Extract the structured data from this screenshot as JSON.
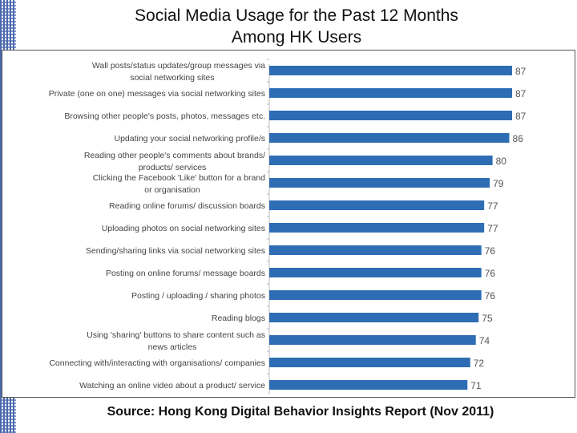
{
  "slide": {
    "title_line1": "Social Media Usage for the Past 12 Months",
    "title_line2": "Among HK Users",
    "source": "Source: Hong Kong Digital Behavior Insights Report (Nov 2011)"
  },
  "colors": {
    "bar": "#2e6db4",
    "label": "#444444",
    "value": "#555555"
  },
  "chart_data": {
    "type": "bar",
    "orientation": "horizontal",
    "title": "Social Media Usage for the Past 12 Months Among HK Users",
    "categories": [
      [
        "Wall posts/status updates/group messages via",
        "social networking sites"
      ],
      [
        "Private (one on one) messages via social networking sites"
      ],
      [
        "Browsing other people's posts, photos, messages etc."
      ],
      [
        "Updating your social networking profile/s"
      ],
      [
        "Reading other people's comments about brands/",
        "products/ services"
      ],
      [
        "Clicking the Facebook 'Like' button for a brand",
        "or organisation"
      ],
      [
        "Reading online forums/ discussion boards"
      ],
      [
        "Uploading photos on social networking sites"
      ],
      [
        "Sending/sharing links via social networking sites"
      ],
      [
        "Posting on online forums/ message boards"
      ],
      [
        "Posting / uploading / sharing photos"
      ],
      [
        "Reading blogs"
      ],
      [
        "Using 'sharing' buttons to share content such as",
        "news articles"
      ],
      [
        "Connecting with/interacting with organisations/  companies"
      ],
      [
        "Watching an online video about a product/ service"
      ]
    ],
    "values": [
      87,
      87,
      87,
      86,
      80,
      79,
      77,
      77,
      76,
      76,
      76,
      75,
      74,
      72,
      71
    ],
    "xlim": [
      0,
      87
    ],
    "legend": "none",
    "grid": false
  }
}
